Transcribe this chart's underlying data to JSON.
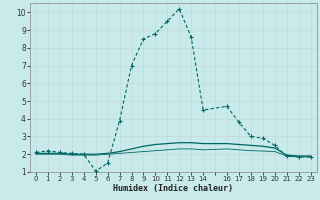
{
  "xlabel": "Humidex (Indice chaleur)",
  "bg_color": "#c8eaea",
  "grid_color": "#c4d8d8",
  "line_color": "#006666",
  "xlim": [
    -0.5,
    23.5
  ],
  "ylim": [
    1,
    10.5
  ],
  "xtick_labels": [
    "0",
    "1",
    "2",
    "3",
    "4",
    "5",
    "6",
    "7",
    "8",
    "9",
    "10",
    "11",
    "12",
    "13",
    "14",
    "",
    "16",
    "17",
    "18",
    "19",
    "20",
    "21",
    "22",
    "23"
  ],
  "xtick_pos": [
    0,
    1,
    2,
    3,
    4,
    5,
    6,
    7,
    8,
    9,
    10,
    11,
    12,
    13,
    14,
    15,
    16,
    17,
    18,
    19,
    20,
    21,
    22,
    23
  ],
  "yticks": [
    1,
    2,
    3,
    4,
    5,
    6,
    7,
    8,
    9,
    10
  ],
  "series_main": {
    "x": [
      0,
      1,
      2,
      3,
      4,
      5,
      6,
      7,
      8,
      9,
      10,
      11,
      12,
      13,
      14,
      16,
      17,
      18,
      19,
      20,
      21,
      22,
      23
    ],
    "y": [
      2.1,
      2.2,
      2.1,
      2.05,
      2.0,
      1.05,
      1.5,
      3.9,
      7.0,
      8.5,
      8.8,
      9.5,
      10.2,
      8.6,
      4.5,
      4.7,
      3.8,
      3.0,
      2.9,
      2.5,
      1.9,
      1.85,
      1.85
    ]
  },
  "series_flat1": {
    "x": [
      0,
      1,
      2,
      3,
      4,
      5,
      6,
      7,
      8,
      9,
      10,
      11,
      12,
      13,
      14,
      16,
      17,
      18,
      19,
      20,
      21,
      22,
      23
    ],
    "y": [
      2.05,
      2.05,
      2.05,
      2.0,
      2.0,
      2.0,
      2.05,
      2.15,
      2.3,
      2.45,
      2.55,
      2.6,
      2.65,
      2.65,
      2.6,
      2.6,
      2.55,
      2.5,
      2.45,
      2.35,
      1.95,
      1.9,
      1.9
    ]
  },
  "series_flat2": {
    "x": [
      0,
      1,
      2,
      3,
      4,
      5,
      6,
      7,
      8,
      9,
      10,
      11,
      12,
      13,
      14,
      16,
      17,
      18,
      19,
      20,
      21,
      22,
      23
    ],
    "y": [
      2.0,
      2.0,
      2.0,
      1.95,
      1.95,
      1.95,
      2.0,
      2.05,
      2.1,
      2.15,
      2.2,
      2.25,
      2.3,
      2.3,
      2.25,
      2.3,
      2.25,
      2.2,
      2.18,
      2.15,
      1.9,
      1.85,
      1.85
    ]
  }
}
